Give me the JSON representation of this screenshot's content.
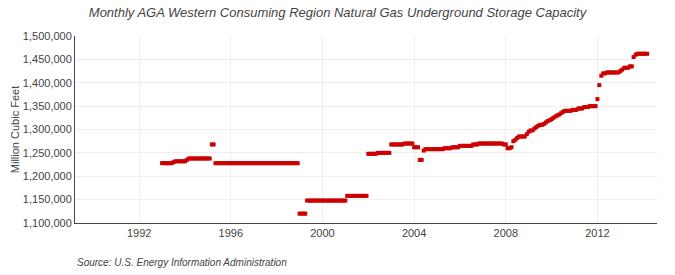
{
  "chart_data": {
    "type": "scatter",
    "title": "Monthly AGA Western Consuming Region Natural Gas Underground Storage Capacity",
    "ylabel": "Million Cubic Feet",
    "source": "Source: U.S. Energy Information Administration",
    "color": "#cc0000",
    "marker": "square",
    "grid": true,
    "xlim": [
      1989.2,
      2014.6
    ],
    "xticks": [
      1992,
      1996,
      2000,
      2004,
      2008,
      2012
    ],
    "ylim": [
      1100000,
      1500000
    ],
    "yticks": [
      {
        "value": 1100000,
        "label": "1,100,000"
      },
      {
        "value": 1150000,
        "label": "1,150,000"
      },
      {
        "value": 1200000,
        "label": "1,200,000"
      },
      {
        "value": 1250000,
        "label": "1,250,000"
      },
      {
        "value": 1300000,
        "label": "1,300,000"
      },
      {
        "value": 1350000,
        "label": "1,350,000"
      },
      {
        "value": 1400000,
        "label": "1,400,000"
      },
      {
        "value": 1450000,
        "label": "1,450,000"
      },
      {
        "value": 1500000,
        "label": "1,500,000"
      }
    ],
    "x": [
      1993.0,
      1993.08,
      1993.17,
      1993.25,
      1993.33,
      1993.42,
      1993.5,
      1993.58,
      1993.67,
      1993.75,
      1993.83,
      1993.92,
      1994.0,
      1994.08,
      1994.17,
      1994.25,
      1994.33,
      1994.42,
      1994.5,
      1994.58,
      1994.67,
      1994.75,
      1994.83,
      1994.92,
      1995.0,
      1995.08,
      1995.17,
      1995.25,
      1995.33,
      1995.42,
      1995.5,
      1995.58,
      1995.67,
      1995.75,
      1995.83,
      1995.92,
      1996.0,
      1996.08,
      1996.17,
      1996.25,
      1996.33,
      1996.42,
      1996.5,
      1996.58,
      1996.67,
      1996.75,
      1996.83,
      1996.92,
      1997.0,
      1997.08,
      1997.17,
      1997.25,
      1997.33,
      1997.42,
      1997.5,
      1997.58,
      1997.67,
      1997.75,
      1997.83,
      1997.92,
      1998.0,
      1998.08,
      1998.17,
      1998.25,
      1998.33,
      1998.42,
      1998.5,
      1998.58,
      1998.67,
      1998.75,
      1998.83,
      1998.92,
      1999.0,
      1999.08,
      1999.17,
      1999.25,
      1999.33,
      1999.42,
      1999.5,
      1999.58,
      1999.67,
      1999.75,
      1999.83,
      1999.92,
      2000.0,
      2000.08,
      2000.17,
      2000.25,
      2000.33,
      2000.42,
      2000.5,
      2000.58,
      2000.67,
      2000.75,
      2000.83,
      2000.92,
      2001.0,
      2001.08,
      2001.17,
      2001.25,
      2001.33,
      2001.42,
      2001.5,
      2001.58,
      2001.67,
      2001.75,
      2001.83,
      2001.92,
      2002.0,
      2002.08,
      2002.17,
      2002.25,
      2002.33,
      2002.42,
      2002.5,
      2002.58,
      2002.67,
      2002.75,
      2002.83,
      2002.92,
      2003.0,
      2003.08,
      2003.17,
      2003.25,
      2003.33,
      2003.42,
      2003.5,
      2003.58,
      2003.67,
      2003.75,
      2003.83,
      2003.92,
      2004.0,
      2004.08,
      2004.17,
      2004.25,
      2004.33,
      2004.42,
      2004.5,
      2004.58,
      2004.67,
      2004.75,
      2004.83,
      2004.92,
      2005.0,
      2005.08,
      2005.17,
      2005.25,
      2005.33,
      2005.42,
      2005.5,
      2005.58,
      2005.67,
      2005.75,
      2005.83,
      2005.92,
      2006.0,
      2006.08,
      2006.17,
      2006.25,
      2006.33,
      2006.42,
      2006.5,
      2006.58,
      2006.67,
      2006.75,
      2006.83,
      2006.92,
      2007.0,
      2007.08,
      2007.17,
      2007.25,
      2007.33,
      2007.42,
      2007.5,
      2007.58,
      2007.67,
      2007.75,
      2007.83,
      2007.92,
      2008.0,
      2008.08,
      2008.17,
      2008.25,
      2008.33,
      2008.42,
      2008.5,
      2008.58,
      2008.67,
      2008.75,
      2008.83,
      2008.92,
      2009.0,
      2009.08,
      2009.17,
      2009.25,
      2009.33,
      2009.42,
      2009.5,
      2009.58,
      2009.67,
      2009.75,
      2009.83,
      2009.92,
      2010.0,
      2010.08,
      2010.17,
      2010.25,
      2010.33,
      2010.42,
      2010.5,
      2010.58,
      2010.67,
      2010.75,
      2010.83,
      2010.92,
      2011.0,
      2011.08,
      2011.17,
      2011.25,
      2011.33,
      2011.42,
      2011.5,
      2011.58,
      2011.67,
      2011.75,
      2011.83,
      2011.92,
      2012.0,
      2012.08,
      2012.17,
      2012.25,
      2012.33,
      2012.42,
      2012.5,
      2012.58,
      2012.67,
      2012.75,
      2012.83,
      2012.92,
      2013.0,
      2013.08,
      2013.17,
      2013.25,
      2013.33,
      2013.42,
      2013.5,
      2013.58,
      2013.67,
      2013.75,
      2013.83,
      2013.92,
      2014.0,
      2014.08,
      2014.17
    ],
    "values": [
      1228000,
      1228000,
      1228000,
      1228000,
      1228000,
      1228000,
      1230000,
      1232000,
      1232000,
      1232000,
      1232000,
      1232000,
      1232000,
      1235000,
      1238000,
      1238000,
      1238000,
      1238000,
      1238000,
      1238000,
      1238000,
      1238000,
      1238000,
      1238000,
      1238000,
      1238000,
      1268000,
      1268000,
      1228000,
      1228000,
      1228000,
      1228000,
      1228000,
      1228000,
      1228000,
      1228000,
      1228000,
      1228000,
      1228000,
      1228000,
      1228000,
      1228000,
      1228000,
      1228000,
      1228000,
      1228000,
      1228000,
      1228000,
      1228000,
      1228000,
      1228000,
      1228000,
      1228000,
      1228000,
      1228000,
      1228000,
      1228000,
      1228000,
      1228000,
      1228000,
      1228000,
      1228000,
      1228000,
      1228000,
      1228000,
      1228000,
      1228000,
      1228000,
      1228000,
      1228000,
      1228000,
      1228000,
      1120000,
      1120000,
      1120000,
      1120000,
      1148000,
      1148000,
      1148000,
      1148000,
      1148000,
      1148000,
      1148000,
      1148000,
      1148000,
      1148000,
      1148000,
      1148000,
      1148000,
      1148000,
      1148000,
      1148000,
      1148000,
      1148000,
      1148000,
      1148000,
      1148000,
      1158000,
      1158000,
      1158000,
      1158000,
      1158000,
      1158000,
      1158000,
      1158000,
      1158000,
      1158000,
      1158000,
      1248000,
      1248000,
      1248000,
      1248000,
      1248000,
      1250000,
      1250000,
      1250000,
      1250000,
      1250000,
      1250000,
      1250000,
      1268000,
      1268000,
      1268000,
      1268000,
      1268000,
      1268000,
      1268000,
      1270000,
      1270000,
      1270000,
      1270000,
      1270000,
      1262000,
      1262000,
      1262000,
      1235000,
      1235000,
      1255000,
      1258000,
      1258000,
      1258000,
      1258000,
      1258000,
      1258000,
      1258000,
      1258000,
      1258000,
      1258000,
      1260000,
      1260000,
      1260000,
      1260000,
      1262000,
      1262000,
      1262000,
      1262000,
      1265000,
      1265000,
      1265000,
      1265000,
      1265000,
      1265000,
      1265000,
      1268000,
      1268000,
      1268000,
      1270000,
      1270000,
      1270000,
      1270000,
      1270000,
      1270000,
      1270000,
      1270000,
      1270000,
      1270000,
      1270000,
      1270000,
      1270000,
      1268000,
      1268000,
      1260000,
      1260000,
      1262000,
      1275000,
      1278000,
      1282000,
      1285000,
      1285000,
      1285000,
      1285000,
      1290000,
      1295000,
      1298000,
      1298000,
      1302000,
      1305000,
      1308000,
      1310000,
      1310000,
      1312000,
      1315000,
      1318000,
      1320000,
      1322000,
      1325000,
      1328000,
      1330000,
      1332000,
      1335000,
      1338000,
      1340000,
      1340000,
      1340000,
      1340000,
      1342000,
      1342000,
      1342000,
      1345000,
      1345000,
      1345000,
      1348000,
      1348000,
      1348000,
      1350000,
      1350000,
      1350000,
      1350000,
      1365000,
      1395000,
      1415000,
      1420000,
      1420000,
      1422000,
      1422000,
      1422000,
      1422000,
      1422000,
      1422000,
      1422000,
      1425000,
      1428000,
      1432000,
      1432000,
      1432000,
      1435000,
      1435000,
      1455000,
      1460000,
      1462000,
      1462000,
      1462000,
      1462000,
      1462000,
      1462000
    ]
  }
}
